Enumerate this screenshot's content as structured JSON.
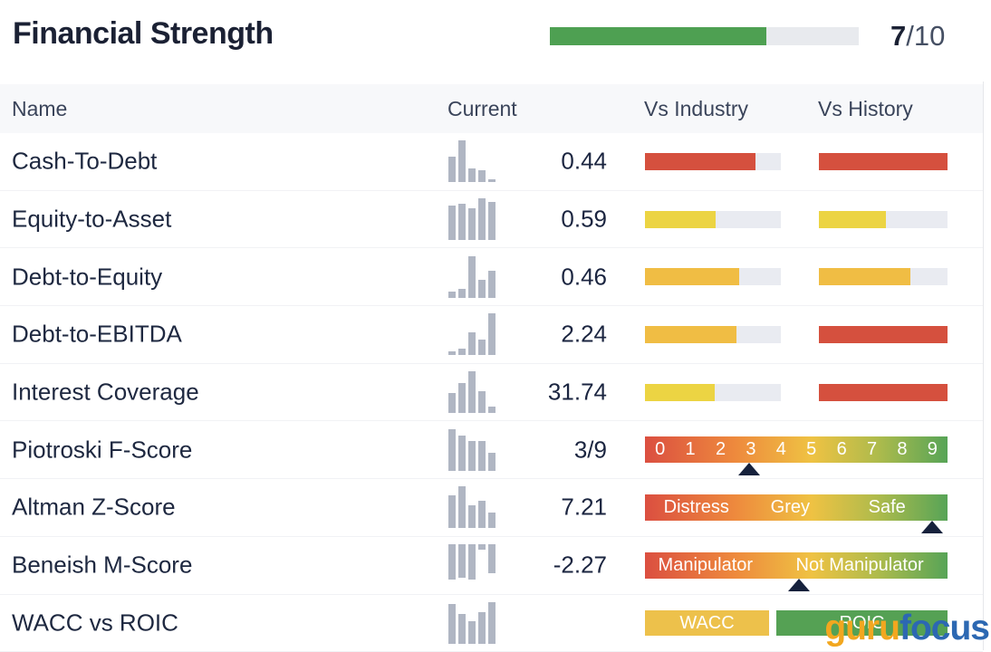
{
  "header": {
    "title": "Financial Strength",
    "score": "7",
    "score_suffix": "/10",
    "progress_pct": 70
  },
  "columns": {
    "name": "Name",
    "current": "Current",
    "industry": "Vs Industry",
    "history": "Vs History"
  },
  "colors": {
    "red": "#d5503e",
    "yellow": "#ecd443",
    "amber": "#f0bd44",
    "amber2": "#edc14b",
    "green": "#55a154",
    "progress_green": "#4ea052"
  },
  "rows": [
    {
      "name": "Cash-To-Debt",
      "value": "0.44",
      "spark": {
        "align": "bottom",
        "heights": [
          62,
          100,
          33,
          30,
          8
        ]
      },
      "right": {
        "type": "pair",
        "industry": {
          "color": "red",
          "pct": 81
        },
        "history": {
          "color": "red",
          "pct": 100
        }
      }
    },
    {
      "name": "Equity-to-Asset",
      "value": "0.59",
      "spark": {
        "align": "bottom",
        "heights": [
          82,
          88,
          76,
          100,
          92
        ]
      },
      "right": {
        "type": "pair",
        "industry": {
          "color": "yellow",
          "pct": 52
        },
        "history": {
          "color": "yellow",
          "pct": 52
        }
      }
    },
    {
      "name": "Debt-to-Equity",
      "value": "0.46",
      "spark": {
        "align": "bottom",
        "heights": [
          15,
          22,
          100,
          42,
          65
        ]
      },
      "right": {
        "type": "pair",
        "industry": {
          "color": "amber",
          "pct": 69
        },
        "history": {
          "color": "amber",
          "pct": 71
        }
      }
    },
    {
      "name": "Debt-to-EBITDA",
      "value": "2.24",
      "spark": {
        "align": "bottom",
        "heights": [
          10,
          16,
          55,
          38,
          100
        ]
      },
      "right": {
        "type": "pair",
        "industry": {
          "color": "amber",
          "pct": 67
        },
        "history": {
          "color": "red",
          "pct": 100
        }
      }
    },
    {
      "name": "Interest Coverage",
      "value": "31.74",
      "spark": {
        "align": "bottom",
        "heights": [
          48,
          72,
          100,
          52,
          16
        ]
      },
      "right": {
        "type": "pair",
        "industry": {
          "color": "yellow",
          "pct": 51
        },
        "history": {
          "color": "red",
          "pct": 100
        }
      }
    },
    {
      "name": "Piotroski F-Score",
      "value": "3/9",
      "spark": {
        "align": "bottom",
        "heights": [
          100,
          85,
          72,
          72,
          42
        ]
      },
      "right": {
        "type": "scale-numbers",
        "numbers": [
          "0",
          "1",
          "2",
          "3",
          "4",
          "5",
          "6",
          "7",
          "8",
          "9"
        ],
        "marker_pct": 34.5
      }
    },
    {
      "name": "Altman Z-Score",
      "value": "7.21",
      "spark": {
        "align": "bottom",
        "heights": [
          80,
          100,
          55,
          66,
          38
        ]
      },
      "right": {
        "type": "scale-zones",
        "zones": [
          {
            "text": "Distress",
            "pos": 17
          },
          {
            "text": "Grey",
            "pos": 48
          },
          {
            "text": "Safe",
            "pos": 80
          }
        ],
        "marker_pct": 95
      }
    },
    {
      "name": "Beneish M-Score",
      "value": "-2.27",
      "spark": {
        "align": "top",
        "heights": [
          85,
          80,
          85,
          12,
          70
        ]
      },
      "right": {
        "type": "scale-zones",
        "zones": [
          {
            "text": "Manipulator",
            "pos": 20
          },
          {
            "text": "Not Manipulator",
            "pos": 71
          }
        ],
        "marker_pct": 51
      }
    },
    {
      "name": "WACC vs ROIC",
      "value": "",
      "spark": {
        "align": "bottom",
        "heights": [
          95,
          72,
          55,
          76,
          100
        ]
      },
      "right": {
        "type": "duo",
        "segments": [
          {
            "text": "WACC",
            "color": "amber2",
            "w": 137
          },
          {
            "text": "ROIC",
            "color": "green",
            "w": 189
          }
        ]
      }
    }
  ],
  "logo": {
    "part1": "guru",
    "part2": "focus"
  }
}
